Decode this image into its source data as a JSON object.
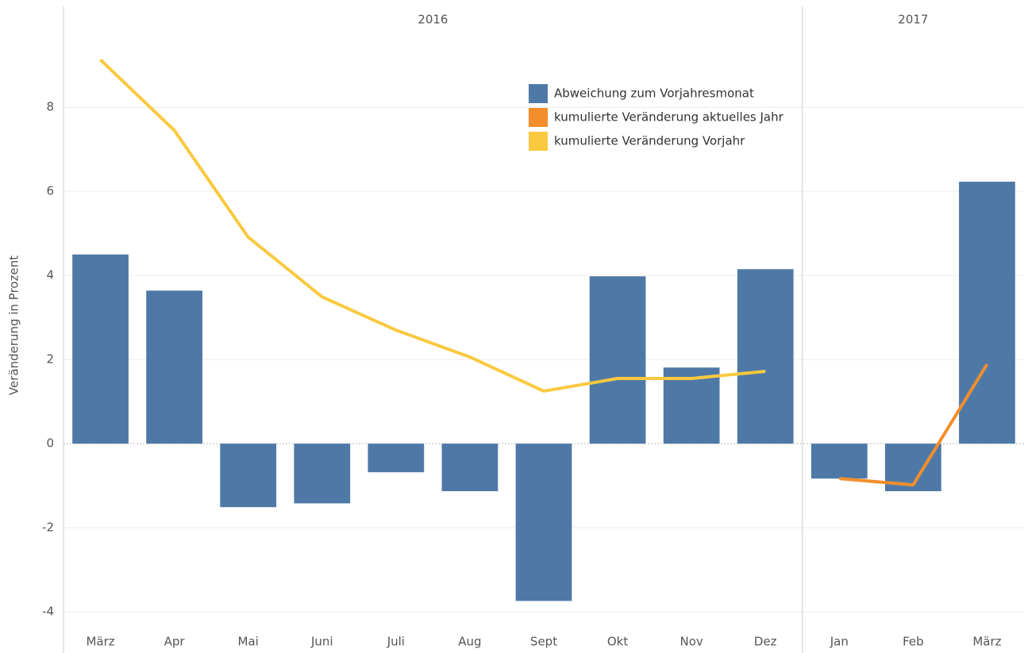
{
  "chart_data": {
    "type": "bar",
    "y_label": "Veränderung in Prozent",
    "categories": [
      "März",
      "Apr",
      "Mai",
      "Juni",
      "Juli",
      "Aug",
      "Sept",
      "Okt",
      "Nov",
      "Dez",
      "Jan",
      "Feb",
      "März"
    ],
    "x_groups": [
      {
        "label": "2016",
        "span": 10
      },
      {
        "label": "2017",
        "span": 3
      }
    ],
    "series": [
      {
        "name": "Abweichung zum Vorjahresmonat",
        "type": "bar",
        "color": "#4e79a7",
        "values": [
          4.5,
          3.64,
          -1.51,
          -1.42,
          -0.68,
          -1.13,
          -3.74,
          3.98,
          1.81,
          4.15,
          -0.83,
          -1.13,
          6.23
        ]
      },
      {
        "name": "kumulierte Veränderung aktuelles Jahr",
        "type": "line",
        "color": "#f28e2b",
        "values": [
          null,
          null,
          null,
          null,
          null,
          null,
          null,
          null,
          null,
          null,
          -0.83,
          -0.98,
          1.89
        ]
      },
      {
        "name": "kumulierte Veränderung Vorjahr",
        "type": "line",
        "color": "#fbc93f",
        "values": [
          9.13,
          7.45,
          4.91,
          3.49,
          2.7,
          2.06,
          1.25,
          1.55,
          1.55,
          1.72,
          null,
          null,
          null
        ]
      }
    ],
    "ylim": [
      -4.45,
      10.4
    ],
    "yticks": [
      -4,
      -2,
      0,
      2,
      4,
      6,
      8
    ],
    "grid": true,
    "legend": "top-right"
  }
}
